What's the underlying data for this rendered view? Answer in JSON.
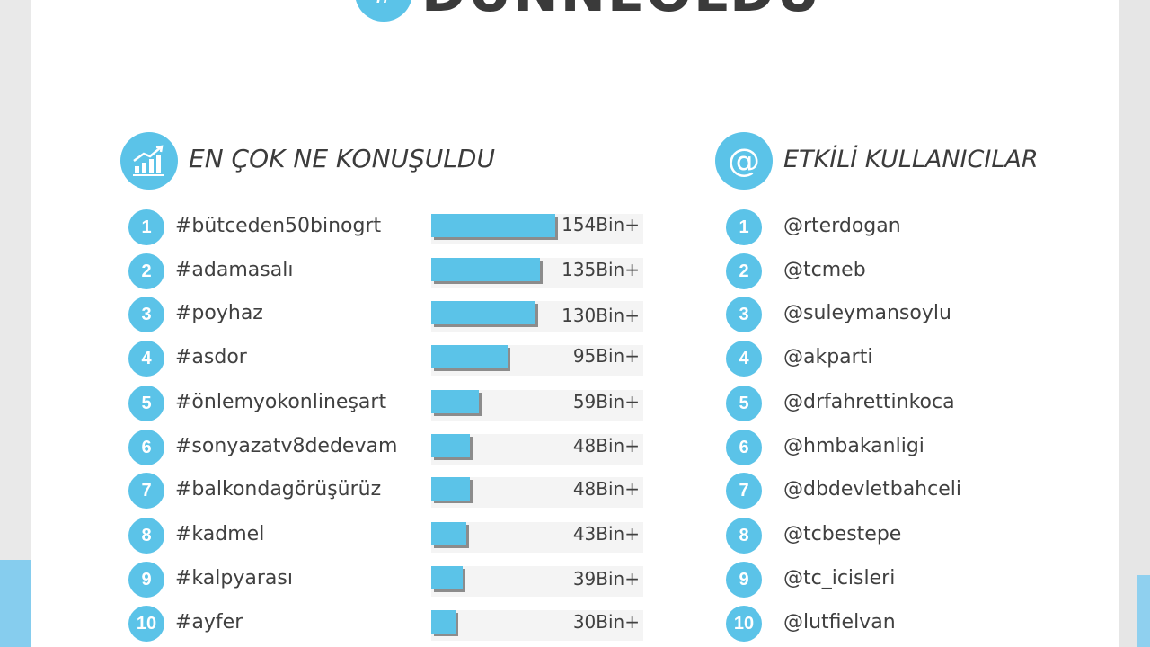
{
  "title": {
    "hash": "#",
    "text": "DÜNNEOLDU"
  },
  "left": {
    "header": "EN ÇOK NE KONUŞULDU",
    "icon": "growth-chart-icon",
    "items": [
      {
        "rank": "1",
        "tag": "#bütceden50binogrt",
        "value": "154Bin+",
        "amount": 154
      },
      {
        "rank": "2",
        "tag": "#adamasalı",
        "value": "135Bin+",
        "amount": 135
      },
      {
        "rank": "3",
        "tag": "#poyhaz",
        "value": "130Bin+",
        "amount": 130
      },
      {
        "rank": "4",
        "tag": "#asdor",
        "value": "95Bin+",
        "amount": 95
      },
      {
        "rank": "5",
        "tag": "#önlemyokonlineşart",
        "value": "59Bin+",
        "amount": 59
      },
      {
        "rank": "6",
        "tag": "#sonyazatv8dedevam",
        "value": "48Bin+",
        "amount": 48
      },
      {
        "rank": "7",
        "tag": "#balkondagörüşürüz",
        "value": "48Bin+",
        "amount": 48
      },
      {
        "rank": "8",
        "tag": "#kadmel",
        "value": "43Bin+",
        "amount": 43
      },
      {
        "rank": "9",
        "tag": "#kalpyarası",
        "value": "39Bin+",
        "amount": 39
      },
      {
        "rank": "10",
        "tag": "#ayfer",
        "value": "30Bin+",
        "amount": 30
      }
    ]
  },
  "right": {
    "header": "ETKİLİ KULLANICILAR",
    "icon_glyph": "@",
    "items": [
      {
        "rank": "1",
        "user": "@rterdogan"
      },
      {
        "rank": "2",
        "user": "@tcmeb"
      },
      {
        "rank": "3",
        "user": "@suleymansoylu"
      },
      {
        "rank": "4",
        "user": "@akparti"
      },
      {
        "rank": "5",
        "user": "@drfahrettinkoca"
      },
      {
        "rank": "6",
        "user": "@hmbakanligi"
      },
      {
        "rank": "7",
        "user": "@dbdevletbahceli"
      },
      {
        "rank": "8",
        "user": "@tcbestepe"
      },
      {
        "rank": "9",
        "user": "@tc_icisleri"
      },
      {
        "rank": "10",
        "user": "@lutfielvan"
      }
    ]
  },
  "colors": {
    "accent": "#5bc3e8",
    "text": "#404040"
  }
}
